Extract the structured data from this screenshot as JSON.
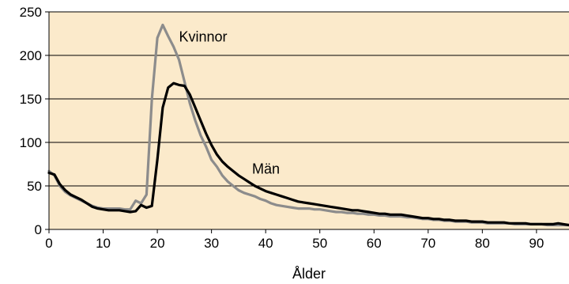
{
  "chart_data": {
    "type": "line",
    "title": "",
    "xlabel": "Ålder",
    "ylabel": "",
    "xlim": [
      0,
      96
    ],
    "ylim": [
      0,
      250
    ],
    "x_ticks": [
      0,
      10,
      20,
      30,
      40,
      50,
      60,
      70,
      80,
      90
    ],
    "y_ticks": [
      0,
      50,
      100,
      150,
      200,
      250
    ],
    "grid": "horizontal",
    "background_color": "#fbeacb",
    "legend": "none",
    "series": [
      {
        "name": "Män",
        "color": "#000000",
        "x": [
          0,
          1,
          2,
          3,
          4,
          5,
          6,
          7,
          8,
          9,
          10,
          11,
          12,
          13,
          14,
          15,
          16,
          17,
          18,
          19,
          20,
          21,
          22,
          23,
          24,
          25,
          26,
          27,
          28,
          29,
          30,
          31,
          32,
          33,
          34,
          35,
          36,
          37,
          38,
          39,
          40,
          41,
          42,
          43,
          44,
          45,
          46,
          47,
          48,
          49,
          50,
          51,
          52,
          53,
          54,
          55,
          56,
          57,
          58,
          59,
          60,
          61,
          62,
          63,
          64,
          65,
          66,
          67,
          68,
          69,
          70,
          71,
          72,
          73,
          74,
          75,
          76,
          77,
          78,
          79,
          80,
          81,
          82,
          83,
          84,
          85,
          86,
          87,
          88,
          89,
          90,
          91,
          92,
          93,
          94,
          95,
          96
        ],
        "values": [
          65,
          63,
          52,
          45,
          40,
          37,
          34,
          30,
          26,
          24,
          23,
          22,
          22,
          22,
          21,
          20,
          21,
          28,
          25,
          27,
          80,
          140,
          163,
          168,
          166,
          165,
          155,
          140,
          125,
          110,
          97,
          86,
          78,
          72,
          67,
          62,
          58,
          54,
          50,
          47,
          44,
          42,
          40,
          38,
          36,
          34,
          32,
          31,
          30,
          29,
          28,
          27,
          26,
          25,
          24,
          23,
          22,
          22,
          21,
          20,
          19,
          18,
          18,
          17,
          17,
          17,
          16,
          15,
          14,
          13,
          13,
          12,
          12,
          11,
          11,
          10,
          10,
          10,
          9,
          9,
          9,
          8,
          8,
          8,
          8,
          7,
          7,
          7,
          7,
          6,
          6,
          6,
          6,
          6,
          7,
          6,
          5
        ]
      },
      {
        "name": "Kvinnor",
        "color": "#8c8c8c",
        "x": [
          0,
          1,
          2,
          3,
          4,
          5,
          6,
          7,
          8,
          9,
          10,
          11,
          12,
          13,
          14,
          15,
          16,
          17,
          18,
          19,
          20,
          21,
          22,
          23,
          24,
          25,
          26,
          27,
          28,
          29,
          30,
          31,
          32,
          33,
          34,
          35,
          36,
          37,
          38,
          39,
          40,
          41,
          42,
          43,
          44,
          45,
          46,
          47,
          48,
          49,
          50,
          51,
          52,
          53,
          54,
          55,
          56,
          57,
          58,
          59,
          60,
          61,
          62,
          63,
          64,
          65,
          66,
          67,
          68,
          69,
          70,
          71,
          72,
          73,
          74,
          75,
          76,
          77,
          78,
          79,
          80,
          81,
          82,
          83,
          84,
          85,
          86,
          87,
          88,
          89,
          90,
          91,
          92,
          93,
          94,
          95,
          96
        ],
        "values": [
          67,
          62,
          50,
          43,
          39,
          36,
          33,
          30,
          27,
          25,
          24,
          24,
          24,
          24,
          23,
          23,
          33,
          30,
          40,
          150,
          220,
          235,
          222,
          210,
          195,
          170,
          145,
          125,
          108,
          95,
          80,
          72,
          62,
          55,
          50,
          45,
          42,
          40,
          38,
          35,
          33,
          30,
          28,
          27,
          26,
          25,
          24,
          24,
          24,
          23,
          23,
          22,
          21,
          20,
          20,
          19,
          19,
          18,
          18,
          17,
          17,
          16,
          16,
          15,
          15,
          15,
          14,
          14,
          13,
          12,
          12,
          11,
          11,
          10,
          10,
          9,
          9,
          9,
          8,
          8,
          8,
          7,
          7,
          7,
          7,
          7,
          6,
          6,
          6,
          6,
          6,
          6,
          5,
          5,
          5,
          5,
          5
        ]
      }
    ],
    "annotations": [
      {
        "text": "Kvinnor",
        "series": "Kvinnor"
      },
      {
        "text": "Män",
        "series": "Män"
      }
    ]
  }
}
